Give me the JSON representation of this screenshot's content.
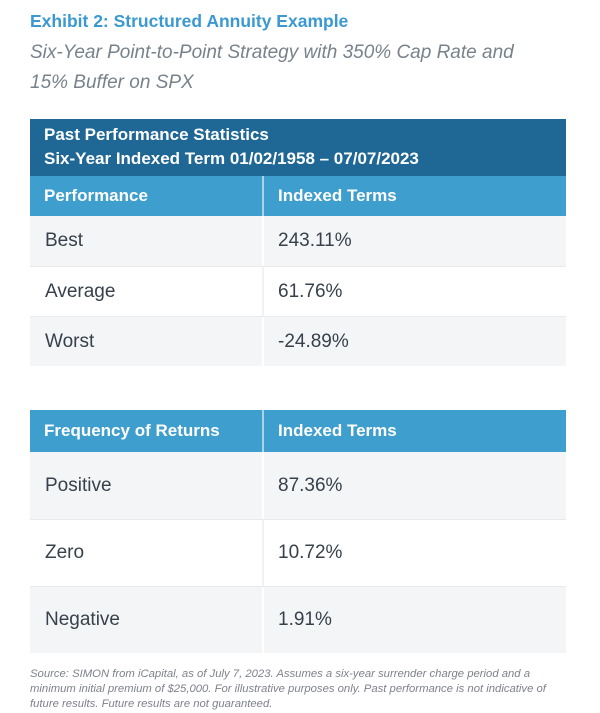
{
  "page": {
    "title": "Exhibit 2: Structured Annuity Example",
    "subtitle": "Six-Year Point-to-Point Strategy with 350% Cap Rate and 15% Buffer on SPX",
    "footnote": "Source: SIMON from iCapital, as of July 7, 2023. Assumes a six-year surrender charge period and a minimum initial premium of $25,000. For illustrative purposes only. Past performance is not indicative of future results. Future results are not guaranteed."
  },
  "colors": {
    "title_blue": "#3a99d0",
    "header_dark_blue": "#1f6795",
    "header_light_blue": "#3e9ecd",
    "row_alt_gray": "#f4f5f7",
    "body_text": "#37414b",
    "muted_text": "#78828b"
  },
  "tables": [
    {
      "banner_line1": "Past Performance Statistics",
      "banner_line2": "Six-Year Indexed Term 01/02/1958 – 07/07/2023",
      "columns": [
        "Performance",
        "Indexed Terms"
      ],
      "rows": [
        {
          "label": "Best",
          "value": "243.11%"
        },
        {
          "label": "Average",
          "value": "61.76%"
        },
        {
          "label": "Worst",
          "value": "-24.89%"
        }
      ]
    },
    {
      "columns": [
        "Frequency of Returns",
        "Indexed Terms"
      ],
      "rows": [
        {
          "label": "Positive",
          "value": "87.36%"
        },
        {
          "label": "Zero",
          "value": "10.72%"
        },
        {
          "label": "Negative",
          "value": "1.91%"
        }
      ]
    }
  ]
}
